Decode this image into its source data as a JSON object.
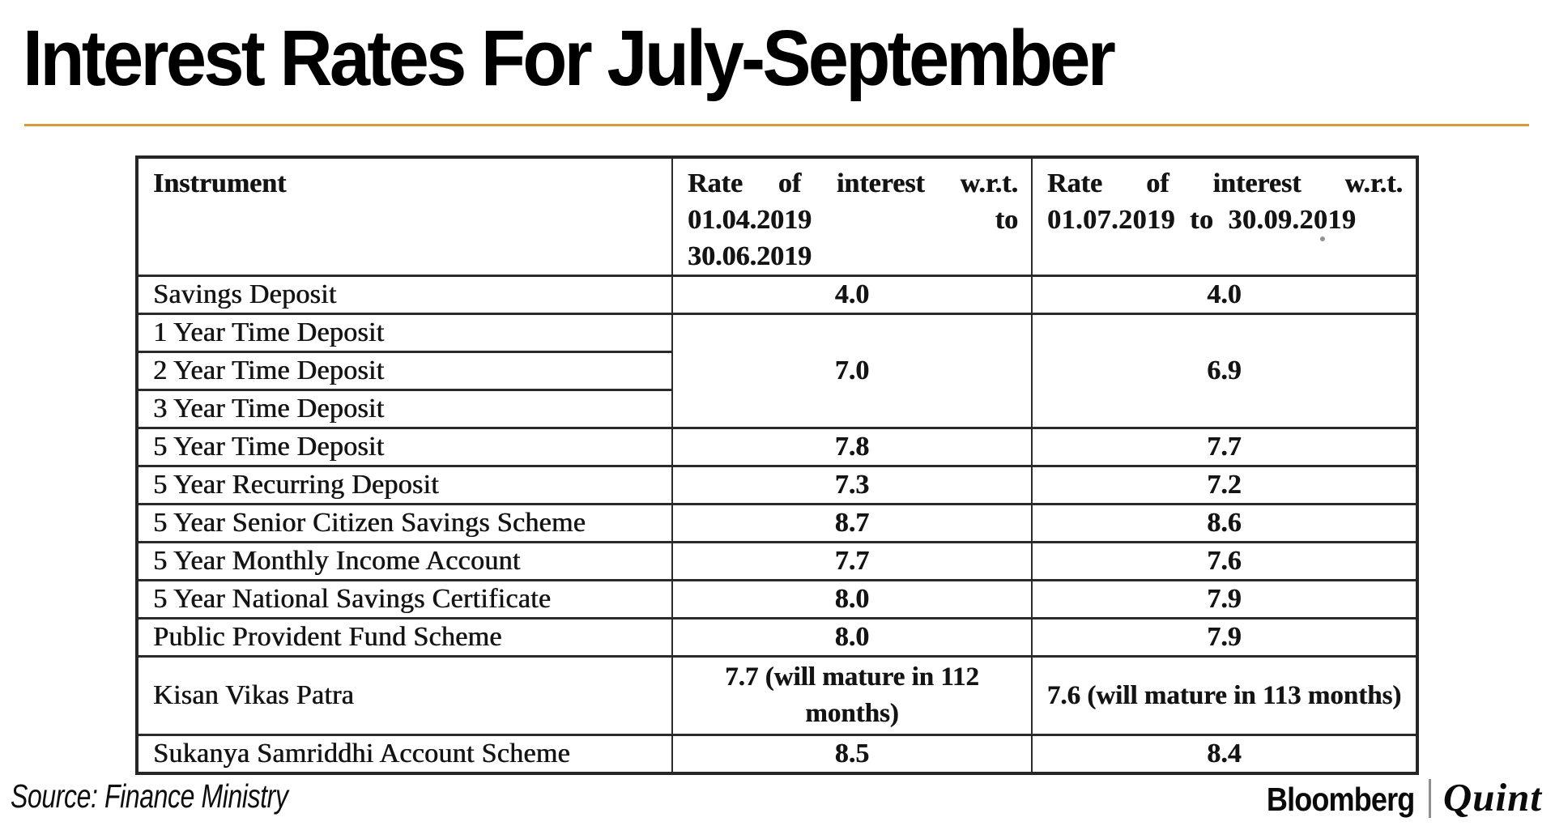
{
  "title": "Interest Rates For July-September",
  "source_line": "Source: Finance Ministry",
  "branding": {
    "bloomberg": "Bloomberg",
    "quint": "Quint"
  },
  "accent_colors": {
    "title_rule": "#d69c3c",
    "table_border": "#2a2a2a",
    "logo_separator": "#8f8f8f"
  },
  "table": {
    "header": {
      "instrument_label": "Instrument",
      "period_apr_jun": {
        "line1": "Rate of interest w.r.t.",
        "date_start": "01.04.2019",
        "to_word": "to",
        "date_end": "30.06.2019"
      },
      "period_jul_sep": {
        "line1": "Rate of interest w.r.t.",
        "line2": "01.07.2019 to 30.09.2019"
      }
    },
    "merged_time_deposit_rates": {
      "apr_jun": "7.0",
      "jul_sep": "6.9"
    },
    "rows": [
      {
        "instrument": "Savings Deposit",
        "apr_jun": "4.0",
        "jul_sep": "4.0"
      },
      {
        "instrument": "1 Year Time Deposit"
      },
      {
        "instrument": "2 Year Time Deposit"
      },
      {
        "instrument": "3 Year Time Deposit"
      },
      {
        "instrument": "5 Year Time Deposit",
        "apr_jun": "7.8",
        "jul_sep": "7.7"
      },
      {
        "instrument": "5 Year Recurring Deposit",
        "apr_jun": "7.3",
        "jul_sep": "7.2"
      },
      {
        "instrument": "5 Year Senior Citizen Savings Scheme",
        "apr_jun": "8.7",
        "jul_sep": "8.6"
      },
      {
        "instrument": "5 Year Monthly Income Account",
        "apr_jun": "7.7",
        "jul_sep": "7.6"
      },
      {
        "instrument": "5 Year National Savings Certificate",
        "apr_jun": "8.0",
        "jul_sep": "7.9"
      },
      {
        "instrument": "Public Provident Fund Scheme",
        "apr_jun": "8.0",
        "jul_sep": "7.9"
      },
      {
        "instrument": "Kisan Vikas Patra",
        "apr_jun": "7.7 (will mature in 112 months)",
        "jul_sep": "7.6 (will mature in 113 months)"
      },
      {
        "instrument": "Sukanya Samriddhi Account Scheme",
        "apr_jun": "8.5",
        "jul_sep": "8.4"
      }
    ]
  }
}
